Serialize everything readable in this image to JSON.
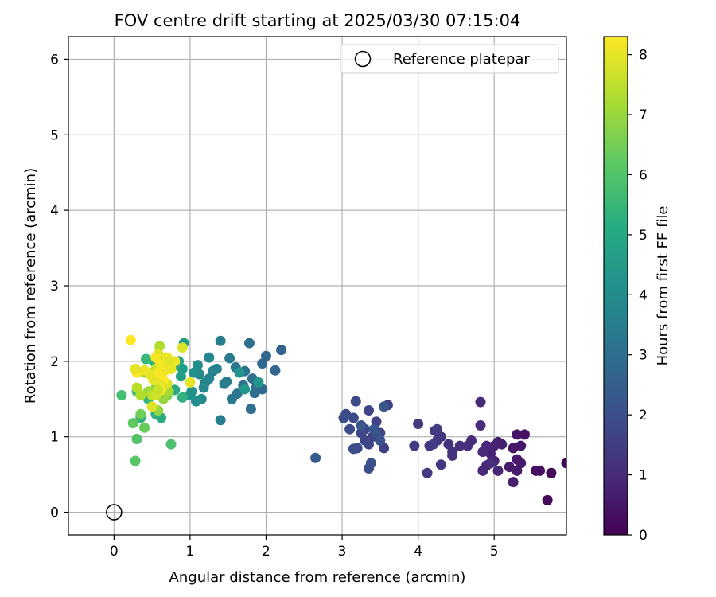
{
  "chart_data": {
    "type": "scatter",
    "title": "FOV centre drift starting at 2025/03/30 07:15:04",
    "xlabel": "Angular distance from reference (arcmin)",
    "ylabel": "Rotation from reference (arcmin)",
    "xlim": [
      -0.6,
      5.95
    ],
    "ylim": [
      -0.3,
      6.3
    ],
    "xticks": [
      "0",
      "1",
      "2",
      "3",
      "4",
      "5"
    ],
    "yticks": [
      "0",
      "1",
      "2",
      "3",
      "4",
      "5",
      "6"
    ],
    "grid": true,
    "legend": {
      "placement": "top-right",
      "entries": [
        "Reference platepar"
      ]
    },
    "reference_point": {
      "x": 0,
      "y": 0
    },
    "colorbar": {
      "label": "Hours from first FF file",
      "range": [
        0,
        8.3
      ],
      "ticks": [
        "0",
        "1",
        "2",
        "3",
        "4",
        "5",
        "6",
        "7",
        "8"
      ],
      "colormap": "viridis"
    },
    "series": [
      {
        "columns": [
          "x",
          "y",
          "hours"
        ],
        "points": [
          [
            5.95,
            0.65,
            0.1
          ],
          [
            5.7,
            0.16,
            0.15
          ],
          [
            5.75,
            0.52,
            0.2
          ],
          [
            5.55,
            0.55,
            0.3
          ],
          [
            5.6,
            0.55,
            0.35
          ],
          [
            5.4,
            1.03,
            0.4
          ],
          [
            5.3,
            1.03,
            0.45
          ],
          [
            5.35,
            0.88,
            0.5
          ],
          [
            5.25,
            0.85,
            0.5
          ],
          [
            5.3,
            0.7,
            0.55
          ],
          [
            5.35,
            0.65,
            0.6
          ],
          [
            5.2,
            0.6,
            0.6
          ],
          [
            5.3,
            0.55,
            0.65
          ],
          [
            5.25,
            0.4,
            0.7
          ],
          [
            5.1,
            0.9,
            0.7
          ],
          [
            5.05,
            0.93,
            0.75
          ],
          [
            5.0,
            0.88,
            0.8
          ],
          [
            4.95,
            0.78,
            0.8
          ],
          [
            5.0,
            0.68,
            0.85
          ],
          [
            5.05,
            0.55,
            0.9
          ],
          [
            4.9,
            0.62,
            0.9
          ],
          [
            4.85,
            0.55,
            0.95
          ],
          [
            4.9,
            0.88,
            0.95
          ],
          [
            4.85,
            0.8,
            1.0
          ],
          [
            4.82,
            1.46,
            1.0
          ],
          [
            4.82,
            1.15,
            1.05
          ],
          [
            4.95,
            0.65,
            1.05
          ],
          [
            4.7,
            0.95,
            1.1
          ],
          [
            4.65,
            0.88,
            1.1
          ],
          [
            4.55,
            0.88,
            1.15
          ],
          [
            4.45,
            0.8,
            1.2
          ],
          [
            4.45,
            0.75,
            1.2
          ],
          [
            4.4,
            0.9,
            1.25
          ],
          [
            4.3,
            1.0,
            1.25
          ],
          [
            4.25,
            0.95,
            1.3
          ],
          [
            4.22,
            1.08,
            1.3
          ],
          [
            4.3,
            0.63,
            1.35
          ],
          [
            4.15,
            0.88,
            1.35
          ],
          [
            4.12,
            0.52,
            1.4
          ],
          [
            4.0,
            1.17,
            1.4
          ],
          [
            3.95,
            0.88,
            1.45
          ],
          [
            4.25,
            1.1,
            1.5
          ],
          [
            4.2,
            0.9,
            1.5
          ],
          [
            3.6,
            1.42,
            1.55
          ],
          [
            3.55,
            0.85,
            1.6
          ],
          [
            3.5,
            1.05,
            1.6
          ],
          [
            3.45,
            1.2,
            1.65
          ],
          [
            3.4,
            1.0,
            1.65
          ],
          [
            3.35,
            0.9,
            1.7
          ],
          [
            3.35,
            1.35,
            1.7
          ],
          [
            3.3,
            1.1,
            1.75
          ],
          [
            3.3,
            0.95,
            1.75
          ],
          [
            3.25,
            1.05,
            1.8
          ],
          [
            3.2,
            0.85,
            1.8
          ],
          [
            3.18,
            1.47,
            1.85
          ],
          [
            3.15,
            1.25,
            1.85
          ],
          [
            3.1,
            1.1,
            1.9
          ],
          [
            3.05,
            1.3,
            1.9
          ],
          [
            3.02,
            1.25,
            1.95
          ],
          [
            3.15,
            0.84,
            1.95
          ],
          [
            3.35,
            0.58,
            2.0
          ],
          [
            3.38,
            0.65,
            2.05
          ],
          [
            3.45,
            1.05,
            2.1
          ],
          [
            3.5,
            0.95,
            2.15
          ],
          [
            3.25,
            1.15,
            2.2
          ],
          [
            3.42,
            1.1,
            2.25
          ],
          [
            3.55,
            1.4,
            2.3
          ],
          [
            2.65,
            0.72,
            2.4
          ],
          [
            2.2,
            2.15,
            2.6
          ],
          [
            2.12,
            1.88,
            2.7
          ],
          [
            2.0,
            2.07,
            2.75
          ],
          [
            1.95,
            1.97,
            2.8
          ],
          [
            1.95,
            1.63,
            2.85
          ],
          [
            1.87,
            1.65,
            2.9
          ],
          [
            1.85,
            1.58,
            2.95
          ],
          [
            1.82,
            1.77,
            3.0
          ],
          [
            1.8,
            1.37,
            3.05
          ],
          [
            1.78,
            2.24,
            3.1
          ],
          [
            1.72,
            1.87,
            3.15
          ],
          [
            1.7,
            1.68,
            3.2
          ],
          [
            1.62,
            1.57,
            3.25
          ],
          [
            1.6,
            1.92,
            3.3
          ],
          [
            1.55,
            1.5,
            3.35
          ],
          [
            1.52,
            2.04,
            3.4
          ],
          [
            1.48,
            1.73,
            3.45
          ],
          [
            1.45,
            1.7,
            3.5
          ],
          [
            1.4,
            1.22,
            3.55
          ],
          [
            1.4,
            2.27,
            3.6
          ],
          [
            1.35,
            1.9,
            3.65
          ],
          [
            1.3,
            1.87,
            3.7
          ],
          [
            1.25,
            1.77,
            3.75
          ],
          [
            1.2,
            1.72,
            3.8
          ],
          [
            1.25,
            2.05,
            3.85
          ],
          [
            1.18,
            1.65,
            3.9
          ],
          [
            1.15,
            1.5,
            3.95
          ],
          [
            1.12,
            1.83,
            4.0
          ],
          [
            1.1,
            1.95,
            4.05
          ],
          [
            1.08,
            1.47,
            4.1
          ],
          [
            1.05,
            1.85,
            4.15
          ],
          [
            1.02,
            1.6,
            4.2
          ],
          [
            1.0,
            1.55,
            4.25
          ],
          [
            1.65,
            1.85,
            4.3
          ],
          [
            1.72,
            1.63,
            4.35
          ],
          [
            1.9,
            1.72,
            4.4
          ],
          [
            0.92,
            2.24,
            4.5
          ],
          [
            0.9,
            1.9,
            4.6
          ],
          [
            0.88,
            1.8,
            4.7
          ],
          [
            0.85,
            2.0,
            4.8
          ],
          [
            0.82,
            1.95,
            4.9
          ],
          [
            0.8,
            1.62,
            5.0
          ],
          [
            0.62,
            1.25,
            5.1
          ],
          [
            0.55,
            1.3,
            5.2
          ],
          [
            0.35,
            1.25,
            5.3
          ],
          [
            0.9,
            1.52,
            5.35
          ],
          [
            0.52,
            2.0,
            5.4
          ],
          [
            0.45,
            1.5,
            5.5
          ],
          [
            0.42,
            2.03,
            5.6
          ],
          [
            0.3,
            1.6,
            5.7
          ],
          [
            0.1,
            1.55,
            5.8
          ],
          [
            0.75,
            0.9,
            5.9
          ],
          [
            0.3,
            0.97,
            6.0
          ],
          [
            0.28,
            0.68,
            6.1
          ],
          [
            0.25,
            1.18,
            6.2
          ],
          [
            0.4,
            1.12,
            6.35
          ],
          [
            0.35,
            1.3,
            6.45
          ],
          [
            0.7,
            1.55,
            6.55
          ],
          [
            0.62,
            1.75,
            6.65
          ],
          [
            0.55,
            1.65,
            6.75
          ],
          [
            0.5,
            1.85,
            6.85
          ],
          [
            0.58,
            1.35,
            6.9
          ],
          [
            0.65,
            1.5,
            7.0
          ],
          [
            0.45,
            1.6,
            7.05
          ],
          [
            0.4,
            1.85,
            7.1
          ],
          [
            0.68,
            2.05,
            7.15
          ],
          [
            0.72,
            1.6,
            7.2
          ],
          [
            0.6,
            2.2,
            7.3
          ],
          [
            0.35,
            1.55,
            7.35
          ],
          [
            0.3,
            1.65,
            7.4
          ],
          [
            0.5,
            1.55,
            7.45
          ],
          [
            0.55,
            1.9,
            7.6
          ],
          [
            0.6,
            2.0,
            7.7
          ],
          [
            0.62,
            1.8,
            7.75
          ],
          [
            0.65,
            1.95,
            7.8
          ],
          [
            0.7,
            1.7,
            7.85
          ],
          [
            0.58,
            2.1,
            7.9
          ],
          [
            0.52,
            1.75,
            7.95
          ],
          [
            0.48,
            1.82,
            8.0
          ],
          [
            0.75,
            1.9,
            8.05
          ],
          [
            0.8,
            2.0,
            8.1
          ],
          [
            0.7,
            2.05,
            8.15
          ],
          [
            0.62,
            1.62,
            8.2
          ],
          [
            0.3,
            1.85,
            8.25
          ],
          [
            0.22,
            2.28,
            8.3
          ],
          [
            0.28,
            1.9,
            8.0
          ],
          [
            0.4,
            1.88,
            8.1
          ],
          [
            0.58,
            1.85,
            8.25
          ],
          [
            0.65,
            1.75,
            8.3
          ],
          [
            0.55,
            2.05,
            8.2
          ],
          [
            0.5,
            1.4,
            7.9
          ],
          [
            0.9,
            2.18,
            7.85
          ],
          [
            1.0,
            1.72,
            8.0
          ],
          [
            0.72,
            2.0,
            7.95
          ],
          [
            0.68,
            1.88,
            8.1
          ],
          [
            0.62,
            1.95,
            8.2
          ],
          [
            0.6,
            1.7,
            8.05
          ],
          [
            0.55,
            1.55,
            7.7
          ],
          [
            0.58,
            1.62,
            7.65
          ]
        ]
      }
    ]
  }
}
